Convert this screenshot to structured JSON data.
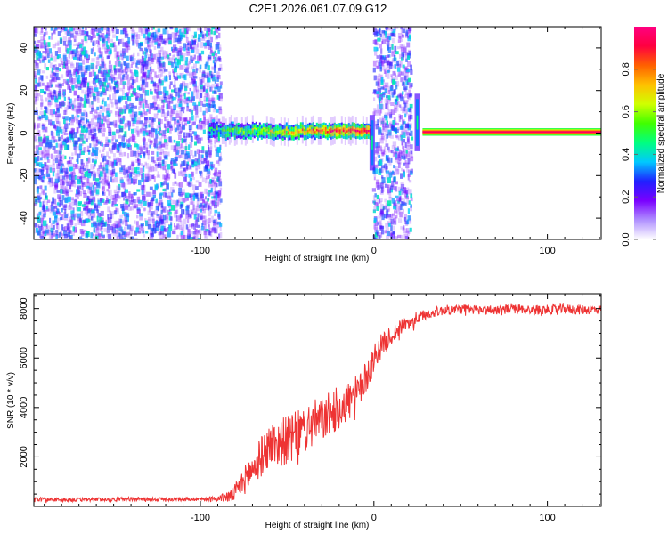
{
  "title": "C2E1.2026.061.07.09.G12",
  "chart_data": [
    {
      "type": "heatmap",
      "name": "spectrogram",
      "xlabel": "Height of straight line (km)",
      "ylabel": "Frequency (Hz)",
      "xlim": [
        -196,
        131
      ],
      "ylim": [
        -50,
        50
      ],
      "xticks": [
        -100,
        0,
        100
      ],
      "yticks": [
        -40,
        -20,
        0,
        20,
        40
      ],
      "colorbar": {
        "label": "Normalized spectral amplitude",
        "range": [
          0,
          1
        ],
        "ticks": [
          0.0,
          0.2,
          0.4,
          0.6,
          0.8
        ],
        "tick_labels": [
          "0.0",
          "0.2",
          "0.4",
          "0.6",
          "0.8"
        ],
        "colormap": [
          "#ffffff",
          "#b090ff",
          "#7a00ff",
          "#2020ff",
          "#00c8ff",
          "#00ff80",
          "#40ff00",
          "#d0ff00",
          "#ffc000",
          "#ff6000",
          "#ff0040",
          "#ff0080"
        ]
      },
      "regions": [
        {
          "kind": "noise",
          "x_range": [
            -196,
            -88
          ],
          "description_level": 0.25
        },
        {
          "kind": "signal_band",
          "x_range": [
            -96,
            -1
          ],
          "freq_center": 1,
          "freq_halfwidth": 3,
          "amplitude_range": [
            0.2,
            0.95
          ]
        },
        {
          "kind": "noise",
          "x_range": [
            0,
            22
          ],
          "description_level": 0.25
        },
        {
          "kind": "spike",
          "x": -1,
          "freq_range": [
            -15,
            6
          ]
        },
        {
          "kind": "spike",
          "x": 25,
          "freq_range": [
            -6,
            16
          ]
        },
        {
          "kind": "tone",
          "x_range": [
            28,
            131
          ],
          "freq_center": 0.5,
          "amplitude": 0.95
        }
      ]
    },
    {
      "type": "line",
      "name": "snr",
      "xlabel": "Height of straight line (km)",
      "ylabel": "SNR (10 * v/v)",
      "xlim": [
        -196,
        131
      ],
      "ylim": [
        0,
        8600
      ],
      "xticks": [
        -100,
        0,
        100
      ],
      "yticks": [
        2000,
        4000,
        6000,
        8000
      ],
      "color": "#ee3333",
      "series": [
        {
          "name": "SNR",
          "x": [
            -196,
            -180,
            -160,
            -140,
            -120,
            -100,
            -90,
            -82,
            -78,
            -72,
            -66,
            -60,
            -54,
            -48,
            -42,
            -36,
            -30,
            -24,
            -18,
            -12,
            -8,
            -4,
            -1,
            2,
            6,
            10,
            14,
            18,
            22,
            26,
            30,
            34,
            38,
            42,
            46,
            50,
            60,
            70,
            80,
            90,
            100,
            110,
            120,
            131
          ],
          "y": [
            300,
            260,
            280,
            300,
            290,
            300,
            320,
            420,
            750,
            1300,
            1900,
            2500,
            2600,
            2700,
            3000,
            3300,
            3500,
            3800,
            4100,
            4400,
            4700,
            5300,
            5800,
            6300,
            6600,
            6900,
            7150,
            7350,
            7500,
            7650,
            7750,
            7850,
            7900,
            7950,
            7950,
            7980,
            7950,
            7950,
            8000,
            7950,
            7950,
            7980,
            7950,
            7980
          ],
          "noise": [
            80,
            80,
            80,
            80,
            80,
            80,
            100,
            300,
            400,
            700,
            800,
            900,
            1000,
            1000,
            1000,
            1000,
            900,
            900,
            900,
            800,
            700,
            650,
            600,
            550,
            450,
            400,
            350,
            300,
            300,
            250,
            220,
            200,
            200,
            200,
            200,
            200,
            200,
            200,
            200,
            200,
            200,
            200,
            200,
            200
          ]
        }
      ]
    }
  ]
}
